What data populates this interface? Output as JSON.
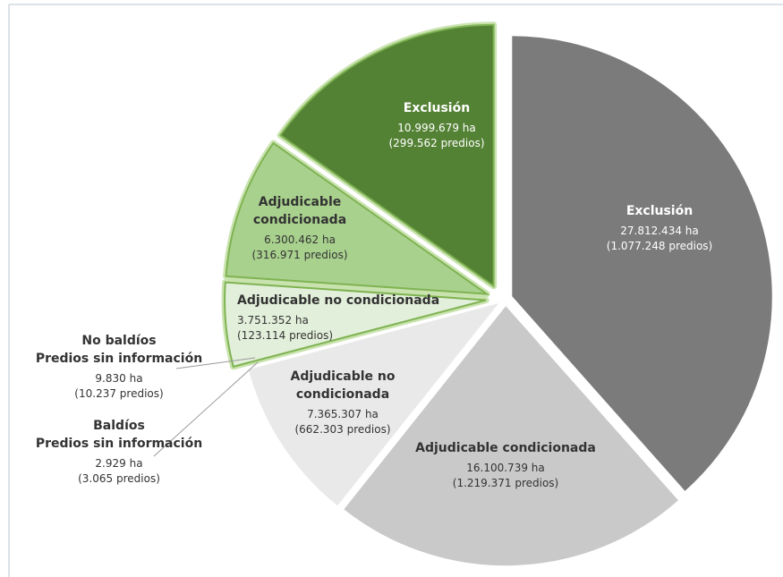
{
  "chart_data": {
    "type": "pie",
    "categories": [
      "Exclusión",
      "Adjudicable condicionada",
      "Adjudicable no\ncondicionada",
      "Baldíos\nPredios sin información",
      "No baldíos\nPredios sin información",
      "Adjudicable no condicionada",
      "Adjudicable\ncondicionada",
      "Exclusión"
    ],
    "values": [
      27812434,
      16100739,
      7365307,
      2929,
      9830,
      3751352,
      6300462,
      10999679
    ],
    "value_labels": [
      "27.812.434 ha",
      "16.100.739 ha",
      "7.365.307 ha",
      "2.929 ha",
      "9.830 ha",
      "3.751.352 ha",
      "6.300.462 ha",
      "10.999.679 ha"
    ],
    "predios": [
      1077248,
      1219371,
      662303,
      3065,
      10237,
      123114,
      316971,
      299562
    ],
    "predios_labels": [
      "(1.077.248 predios)",
      "(1.219.371 predios)",
      "(662.303 predios)",
      "(3.065 predios)",
      "(10.237 predios)",
      "(123.114 predios)",
      "(316.971 predios)",
      "(299.562 predios)"
    ],
    "colors": [
      "#7b7b7b",
      "#c9c9c9",
      "#e9e9e9",
      "#e9e9e9",
      "#e9e9e9",
      "#e2efda",
      "#a9d18e",
      "#548235"
    ]
  }
}
